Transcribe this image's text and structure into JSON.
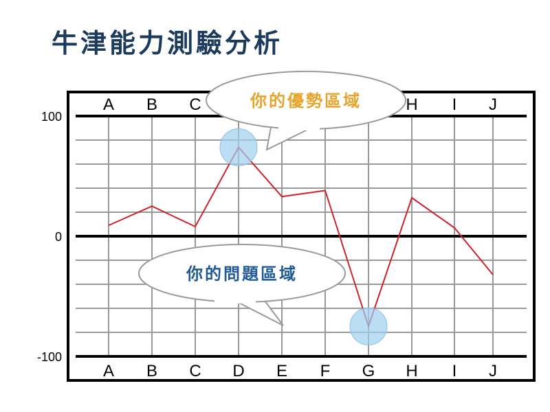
{
  "title": "牛津能力測驗分析",
  "chart_data": {
    "type": "line",
    "categories": [
      "A",
      "B",
      "C",
      "D",
      "E",
      "F",
      "G",
      "H",
      "I",
      "J"
    ],
    "values": [
      9,
      25,
      8,
      74,
      33,
      38,
      -75,
      32,
      7,
      -32
    ],
    "ylim": [
      -100,
      100
    ],
    "yticks": [
      "100",
      "0",
      "-100"
    ],
    "grid": true,
    "line_color": "#cc2229",
    "annotations": [
      {
        "text": "你的優勢區域",
        "category": "D",
        "color": "#e8a42a"
      },
      {
        "text": "你的問題區域",
        "category": "G",
        "color": "#1f5a96"
      }
    ]
  }
}
